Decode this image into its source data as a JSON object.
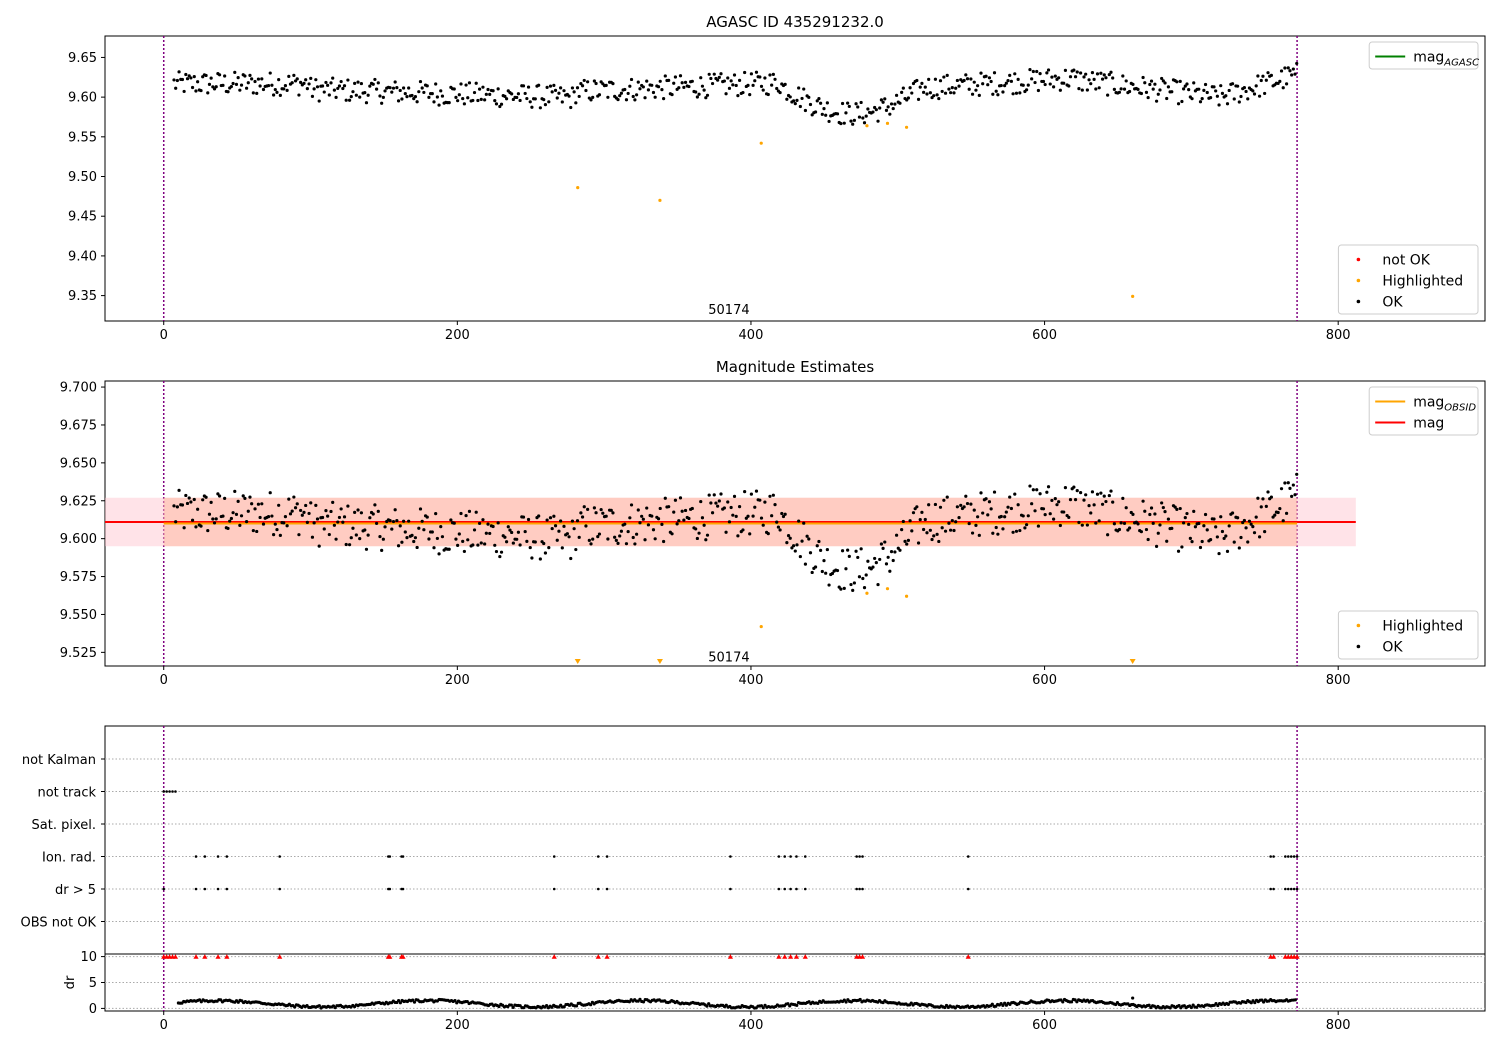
{
  "chart_data": [
    {
      "type": "scatter",
      "title": "AGASC ID 435291232.0",
      "xlim": [
        -40,
        900
      ],
      "ylim": [
        9.318,
        9.677
      ],
      "xticks": [
        0,
        200,
        400,
        600,
        800
      ],
      "yticks": [
        9.35,
        9.4,
        9.45,
        9.5,
        9.55,
        9.6,
        9.65
      ],
      "ytick_decimals": 2,
      "vlines": [
        0,
        772
      ],
      "annotation": {
        "text": "50174",
        "x": 385,
        "y": 9.332
      },
      "legends": [
        {
          "position": "top-right",
          "entries": [
            {
              "label": "mag",
              "sub": "AGASC",
              "kind": "line",
              "color": "#008000"
            }
          ]
        },
        {
          "position": "bottom-right",
          "entries": [
            {
              "label": "not OK",
              "kind": "dot",
              "color": "#ff0000"
            },
            {
              "label": "Highlighted",
              "kind": "dot",
              "color": "#ffa500"
            },
            {
              "label": "OK",
              "kind": "dot",
              "color": "#000000"
            }
          ]
        }
      ],
      "series": [
        {
          "name": "Highlighted",
          "color": "#ffa500",
          "marker": "dot",
          "points": [
            [
              282,
              9.486
            ],
            [
              338,
              9.47
            ],
            [
              407,
              9.542
            ],
            [
              479,
              9.564
            ],
            [
              493,
              9.567
            ],
            [
              506,
              9.562
            ],
            [
              660,
              9.349
            ]
          ]
        },
        {
          "name": "OK",
          "color": "#000000",
          "marker": "dot",
          "generated": "ok_main"
        }
      ]
    },
    {
      "type": "scatter",
      "title": "Magnitude Estimates",
      "xlim": [
        -40,
        900
      ],
      "ylim": [
        9.516,
        9.704
      ],
      "xticks": [
        0,
        200,
        400,
        600,
        800
      ],
      "yticks": [
        9.525,
        9.55,
        9.575,
        9.6,
        9.625,
        9.65,
        9.675,
        9.7
      ],
      "ytick_decimals": 3,
      "vlines": [
        0,
        772
      ],
      "annotation": {
        "text": "50174",
        "x": 385,
        "y": 9.5215
      },
      "bands": [
        {
          "x0": -40,
          "x1": 812,
          "y0": 9.595,
          "y1": 9.627,
          "color": "#ffc0cb",
          "opacity": 0.45
        },
        {
          "x0": 0,
          "x1": 772,
          "y0": 9.595,
          "y1": 9.627,
          "color": "#ffa07a",
          "opacity": 0.35
        }
      ],
      "hlines": [
        {
          "name": "mag",
          "y": 9.611,
          "x0": -40,
          "x1": 812,
          "color": "#ff0000"
        },
        {
          "name": "mag_OBSID",
          "y": 9.61,
          "x0": 0,
          "x1": 772,
          "color": "#ffa500"
        }
      ],
      "legends": [
        {
          "position": "top-right",
          "entries": [
            {
              "label": "mag",
              "sub": "OBSID",
              "kind": "line",
              "color": "#ffa500"
            },
            {
              "label": "mag",
              "kind": "line",
              "color": "#ff0000"
            }
          ]
        },
        {
          "position": "bottom-right",
          "entries": [
            {
              "label": "Highlighted",
              "kind": "dot",
              "color": "#ffa500"
            },
            {
              "label": "OK",
              "kind": "dot",
              "color": "#000000"
            }
          ]
        }
      ],
      "series": [
        {
          "name": "Highlighted",
          "color": "#ffa500",
          "marker": "dot",
          "points": [
            [
              407,
              9.542
            ],
            [
              479,
              9.564
            ],
            [
              493,
              9.567
            ],
            [
              506,
              9.562
            ]
          ]
        },
        {
          "name": "Highlighted (off-scale)",
          "color": "#ffa500",
          "marker": "triangle-down",
          "points": [
            [
              282,
              9.519
            ],
            [
              338,
              9.519
            ],
            [
              660,
              9.519
            ]
          ]
        },
        {
          "name": "OK",
          "color": "#000000",
          "marker": "dot",
          "generated": "ok_main"
        }
      ]
    },
    {
      "type": "scatter",
      "title": "",
      "xlim": [
        -40,
        900
      ],
      "xticks": [
        0,
        200,
        400,
        600,
        800
      ],
      "vlines": [
        0,
        772
      ],
      "flag_rows": [
        "not Kalman",
        "not track",
        "Sat. pixel.",
        "Ion. rad.",
        "dr > 5",
        "OBS not OK"
      ],
      "flags": {
        "not track": [
          0,
          2,
          4,
          6,
          8
        ],
        "Ion. rad.": [
          22,
          28,
          37,
          43,
          79,
          153,
          154,
          162,
          163,
          266,
          296,
          302,
          386,
          419,
          423,
          427,
          431,
          437,
          472,
          474,
          476,
          548,
          754,
          756,
          764,
          766,
          768,
          770,
          772
        ],
        "dr > 5": [
          0,
          22,
          28,
          37,
          43,
          79,
          153,
          154,
          162,
          163,
          266,
          296,
          302,
          386,
          419,
          423,
          427,
          431,
          437,
          472,
          474,
          476,
          548,
          754,
          756,
          764,
          766,
          768,
          770,
          772
        ]
      }
    },
    {
      "type": "scatter",
      "ylabel": "dr",
      "xlim": [
        -40,
        900
      ],
      "ylim": [
        -0.5,
        10.5
      ],
      "xticks": [
        0,
        200,
        400,
        600,
        800
      ],
      "yticks": [
        0,
        5,
        10
      ],
      "vlines": [
        0,
        772
      ],
      "dr_clipped": {
        "y": 10,
        "color": "#ff0000",
        "marker": "triangle-up",
        "x": [
          0,
          2,
          4,
          6,
          8,
          22,
          28,
          37,
          43,
          79,
          153,
          154,
          162,
          163,
          266,
          296,
          302,
          386,
          419,
          423,
          427,
          431,
          437,
          472,
          474,
          476,
          548,
          754,
          756,
          764,
          766,
          768,
          770,
          772
        ]
      },
      "dr_outlier": [
        [
          660,
          2.0
        ]
      ],
      "series": [
        {
          "name": "dr",
          "color": "#000000",
          "marker": "dot",
          "generated": "dr_main"
        }
      ]
    }
  ]
}
